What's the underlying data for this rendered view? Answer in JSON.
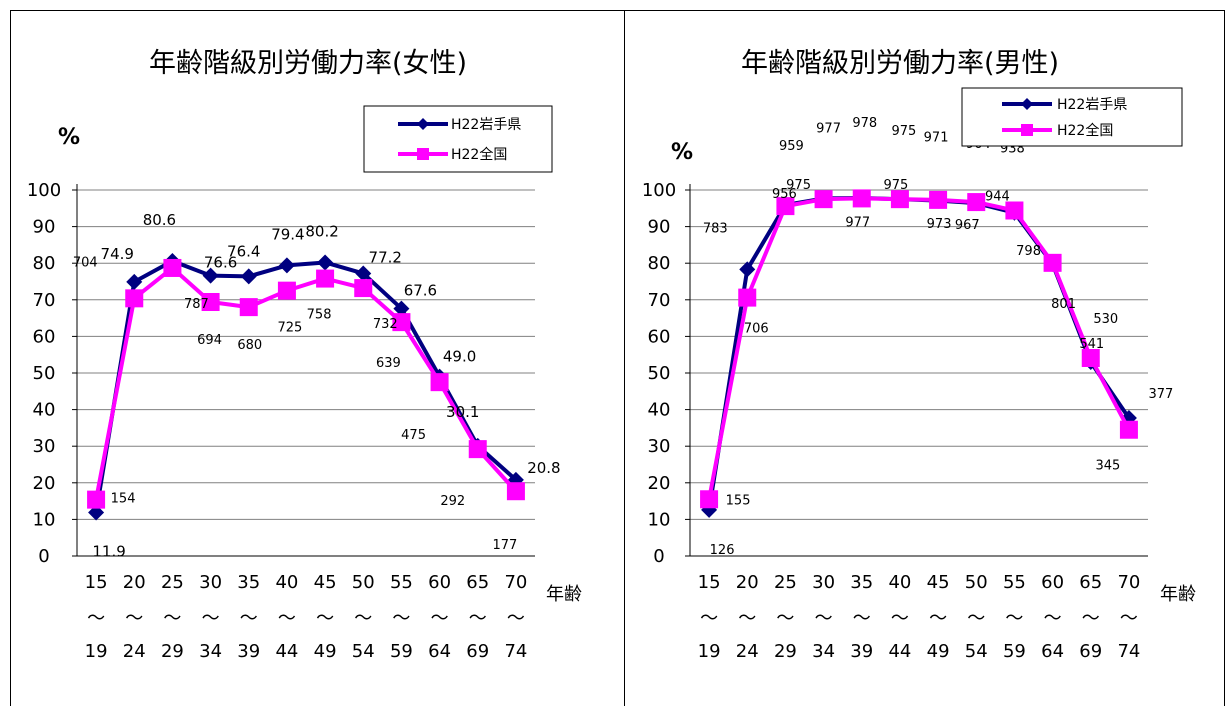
{
  "chart_data": [
    {
      "type": "line",
      "title": "年齢階級別労働力率(女性)",
      "ylabel": "%",
      "xlabel": "年齢",
      "x_top": [
        "15",
        "20",
        "25",
        "30",
        "35",
        "40",
        "45",
        "50",
        "55",
        "60",
        "65",
        "70"
      ],
      "x_mid": "～",
      "x_bottom": [
        "19",
        "24",
        "29",
        "34",
        "39",
        "44",
        "49",
        "54",
        "59",
        "64",
        "69",
        "74"
      ],
      "ylim": [
        0,
        100
      ],
      "yticks": [
        "0",
        "10",
        "20",
        "30",
        "40",
        "50",
        "60",
        "70",
        "80",
        "90",
        "100"
      ],
      "grid": true,
      "legend_position": "top-right",
      "series": [
        {
          "name": "H22岩手県",
          "color": "#000080",
          "marker": "diamond",
          "values": [
            11.9,
            74.9,
            80.6,
            76.6,
            76.4,
            79.4,
            80.2,
            77.2,
            67.6,
            49.0,
            30.1,
            20.8
          ],
          "labels": [
            "11.9",
            "74.9",
            "80.6",
            "76.6",
            "76.4",
            "79.4",
            "80.2",
            "77.2",
            "67.6",
            "49.0",
            "30.1",
            "20.8"
          ]
        },
        {
          "name": "H22全国",
          "color": "#ff00ff",
          "marker": "square",
          "values": [
            15.4,
            70.4,
            78.7,
            69.4,
            68.0,
            72.5,
            75.8,
            73.2,
            63.9,
            47.5,
            29.2,
            17.7
          ],
          "labels": [
            "154",
            "704",
            "787",
            "694",
            "680",
            "725",
            "758",
            "732",
            "639",
            "475",
            "292",
            "177"
          ]
        }
      ]
    },
    {
      "type": "line",
      "title": "年齢階級別労働力率(男性)",
      "ylabel": "%",
      "xlabel": "年齢",
      "x_top": [
        "15",
        "20",
        "25",
        "30",
        "35",
        "40",
        "45",
        "50",
        "55",
        "60",
        "65",
        "70"
      ],
      "x_mid": "～",
      "x_bottom": [
        "19",
        "24",
        "29",
        "34",
        "39",
        "44",
        "49",
        "54",
        "59",
        "64",
        "69",
        "74"
      ],
      "ylim": [
        0,
        100
      ],
      "yticks": [
        "0",
        "10",
        "20",
        "30",
        "40",
        "50",
        "60",
        "70",
        "80",
        "90",
        "100"
      ],
      "grid": true,
      "legend_position": "top-right",
      "series": [
        {
          "name": "H22岩手県",
          "color": "#000080",
          "marker": "diamond",
          "values": [
            12.6,
            78.3,
            95.9,
            97.7,
            97.8,
            97.5,
            97.1,
            96.4,
            93.8,
            79.8,
            53.0,
            37.7
          ],
          "labels": [
            "126",
            "783",
            "959",
            "977",
            "978",
            "975",
            "971",
            "964",
            "938",
            "798",
            "530",
            "377"
          ]
        },
        {
          "name": "H22全国",
          "color": "#ff00ff",
          "marker": "square",
          "values": [
            15.5,
            70.6,
            95.6,
            97.5,
            97.7,
            97.5,
            97.3,
            96.7,
            94.4,
            80.1,
            54.1,
            34.5
          ],
          "labels": [
            "155",
            "706",
            "956",
            "975",
            "977",
            "975",
            "973",
            "967",
            "944",
            "801",
            "541",
            "345"
          ]
        }
      ]
    }
  ]
}
